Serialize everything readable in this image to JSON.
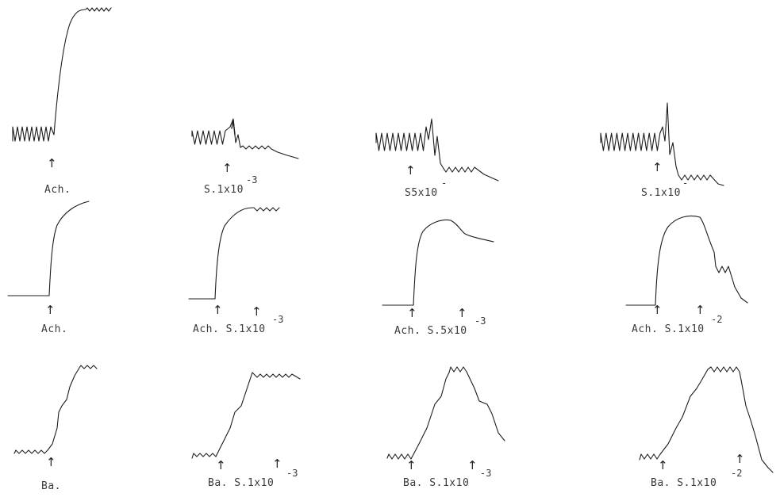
{
  "colors": {
    "trace": "#1c1c1c",
    "label": "#3a3a3a",
    "background": "#ffffff"
  },
  "rows": [
    {
      "panels": [
        {
          "label": "Ach.",
          "superscript": ""
        },
        {
          "label": "S.1x10",
          "superscript": "-3"
        },
        {
          "label": "S5x10",
          "superscript": "-"
        },
        {
          "label": "S.1x10",
          "superscript": "-"
        }
      ]
    },
    {
      "panels": [
        {
          "label": "Ach.",
          "superscript": ""
        },
        {
          "label": "Ach. S.1x10",
          "superscript": "-3"
        },
        {
          "label": "Ach. S.5x10",
          "superscript": "-3"
        },
        {
          "label": "Ach. S.1x10",
          "superscript": "-2"
        }
      ]
    },
    {
      "panels": [
        {
          "label": "Ba.",
          "superscript": ""
        },
        {
          "label": "Ba. S.1x10",
          "superscript": "-3"
        },
        {
          "label": "Ba. S.1x10",
          "superscript": "-3"
        },
        {
          "label": "Ba. S.1x10",
          "superscript": "-2"
        }
      ]
    }
  ],
  "arrow_glyph": "↑"
}
